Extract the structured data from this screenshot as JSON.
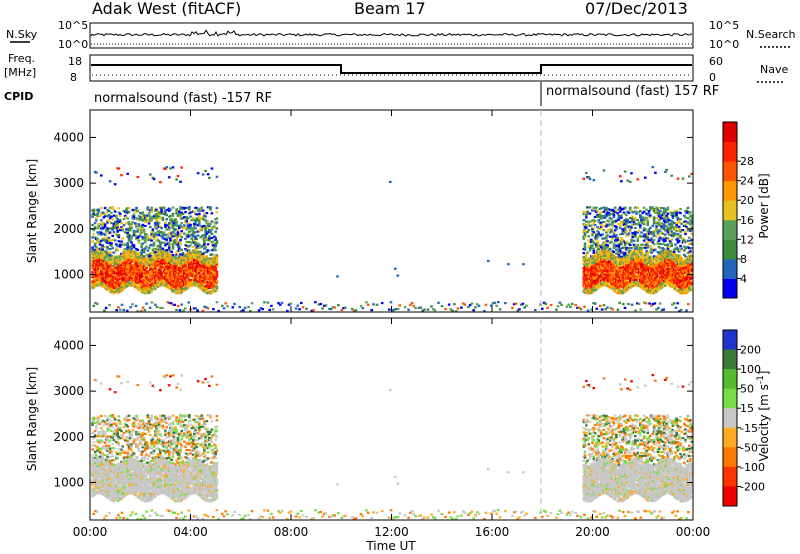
{
  "header": {
    "station": "Adak West (fitACF)",
    "beam": "Beam 17",
    "date": "07/Dec/2013"
  },
  "strip_labels": {
    "nsky": "N.Sky",
    "nsearch": "N.Search",
    "freq": "Freq.",
    "freq_unit": "[MHz]",
    "nave": "Nave",
    "cpid": "CPID",
    "nsky_top": "10^5",
    "nsky_bottom": "10^0",
    "freq_top": "18",
    "freq_bottom": "8",
    "nave_top": "60",
    "nave_bottom": "0"
  },
  "cpid_blocks": [
    {
      "start": "00:00",
      "end": "18:00",
      "label": "normalsound (fast) -157 RF"
    },
    {
      "start": "18:00",
      "end": "24:00",
      "label": "normalsound (fast) 157 RF"
    }
  ],
  "colors": {
    "power": [
      "#0000ee",
      "#2266bb",
      "#3d8a3d",
      "#5aa05a",
      "#e8c020",
      "#ff9900",
      "#ff5500",
      "#ff2200",
      "#dd0000"
    ],
    "velocity": [
      "#2233cc",
      "#3a7a3a",
      "#55bb33",
      "#77dd44",
      "#c8c8c8",
      "#ffaa22",
      "#ff7700",
      "#ff3300",
      "#ee0000"
    ]
  },
  "chart_data": [
    {
      "type": "heatmap",
      "panel": "power",
      "xlabel": "",
      "ylabel": "Slant Range [km]",
      "x_ticks": [
        "00:00",
        "04:00",
        "08:00",
        "12:00",
        "16:00",
        "20:00",
        "00:00"
      ],
      "y_ticks": [
        1000,
        2000,
        3000,
        4000
      ],
      "ylim": [
        180,
        4600
      ],
      "colorbar": {
        "label": "Power [dB]",
        "ticks": [
          4,
          8,
          12,
          16,
          20,
          24,
          28
        ]
      }
    },
    {
      "type": "heatmap",
      "panel": "velocity",
      "xlabel": "Time UT",
      "ylabel": "Slant Range [km]",
      "x_ticks": [
        "00:00",
        "04:00",
        "08:00",
        "12:00",
        "16:00",
        "20:00",
        "00:00"
      ],
      "y_ticks": [
        1000,
        2000,
        3000,
        4000
      ],
      "ylim": [
        180,
        4600
      ],
      "colorbar": {
        "label": "Velocity [m s^-1]",
        "ticks": [
          200,
          100,
          50,
          15,
          -15,
          -50,
          -100,
          -200
        ]
      }
    }
  ]
}
